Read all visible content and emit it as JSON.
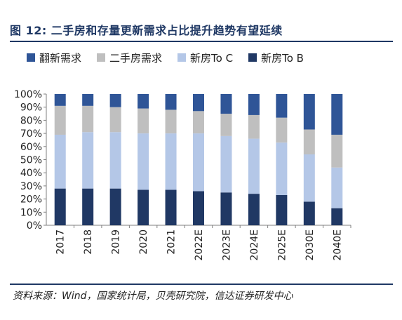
{
  "header": {
    "title": "图 12:  二手房和存量更新需求占比提升趋势有望延续"
  },
  "chart_data": {
    "type": "bar",
    "stacked": true,
    "categories": [
      "2017",
      "2018",
      "2019",
      "2020",
      "2021",
      "2022E",
      "2023E",
      "2024E",
      "2025E",
      "2030E",
      "2040E"
    ],
    "series": [
      {
        "name": "新房To B",
        "color": "#203864",
        "values": [
          28,
          28,
          28,
          27,
          27,
          26,
          25,
          24,
          23,
          18,
          13
        ]
      },
      {
        "name": "新房To C",
        "color": "#b4c7e7",
        "values": [
          41,
          43,
          43,
          43,
          43,
          44,
          43,
          42,
          40,
          36,
          31
        ]
      },
      {
        "name": "二手房需求",
        "color": "#bfbfbf",
        "values": [
          22,
          20,
          19,
          19,
          18,
          17,
          17,
          18,
          19,
          19,
          25
        ]
      },
      {
        "name": "翻新需求",
        "color": "#2f5597",
        "values": [
          9,
          9,
          10,
          11,
          12,
          13,
          15,
          16,
          18,
          27,
          31
        ]
      }
    ],
    "legend_order": [
      "翻新需求",
      "二手房需求",
      "新房To C",
      "新房To B"
    ],
    "y_ticks": [
      "0%",
      "10%",
      "20%",
      "30%",
      "40%",
      "50%",
      "60%",
      "70%",
      "80%",
      "90%",
      "100%"
    ],
    "ylim": [
      0,
      100
    ],
    "grid": false,
    "legend_position": "top"
  },
  "footer": {
    "source": "资料来源：Wind，国家统计局，贝壳研究院，信达证券研发中心"
  }
}
